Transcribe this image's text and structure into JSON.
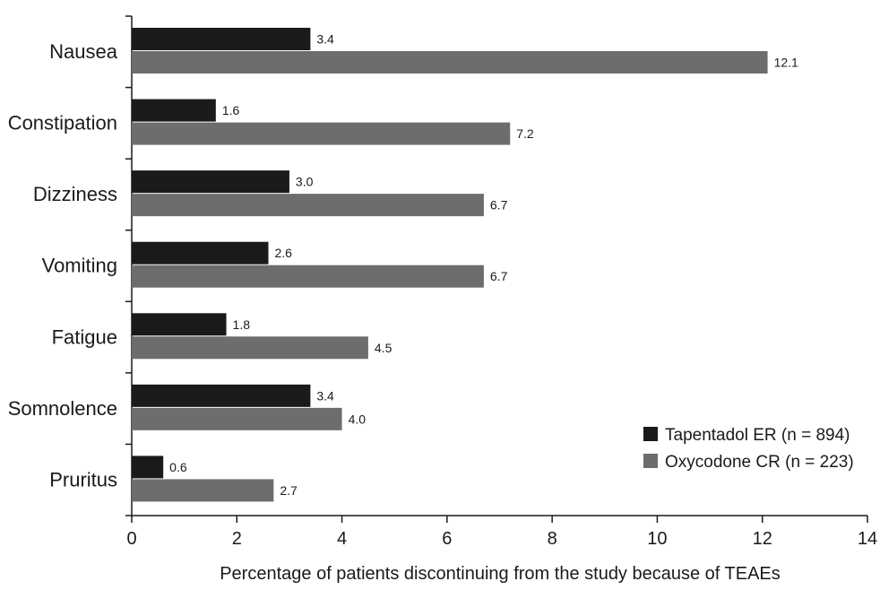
{
  "chart_data": {
    "type": "bar",
    "orientation": "horizontal",
    "categories": [
      "Nausea",
      "Constipation",
      "Dizziness",
      "Vomiting",
      "Fatigue",
      "Somnolence",
      "Pruritus"
    ],
    "series": [
      {
        "name": "Tapentadol ER (n = 894)",
        "color": "#1a1a1a",
        "values": [
          3.4,
          1.6,
          3.0,
          2.6,
          1.8,
          3.4,
          0.6
        ],
        "labels": [
          "3.4",
          "1.6",
          "3.0",
          "2.6",
          "1.8",
          "3.4",
          "0.6"
        ]
      },
      {
        "name": "Oxycodone CR (n = 223)",
        "color": "#6d6d6d",
        "values": [
          12.1,
          7.2,
          6.7,
          6.7,
          4.5,
          4.0,
          2.7
        ],
        "labels": [
          "12.1",
          "7.2",
          "6.7",
          "6.7",
          "4.5",
          "4.0",
          "2.7"
        ]
      }
    ],
    "xlabel": "Percentage of patients discontinuing from the study because of TEAEs",
    "ylabel": "",
    "xlim": [
      0,
      14
    ],
    "xticks": [
      "0",
      "2",
      "4",
      "6",
      "8",
      "10",
      "12",
      "14"
    ],
    "grid": false,
    "legend_position": "bottom-right"
  }
}
